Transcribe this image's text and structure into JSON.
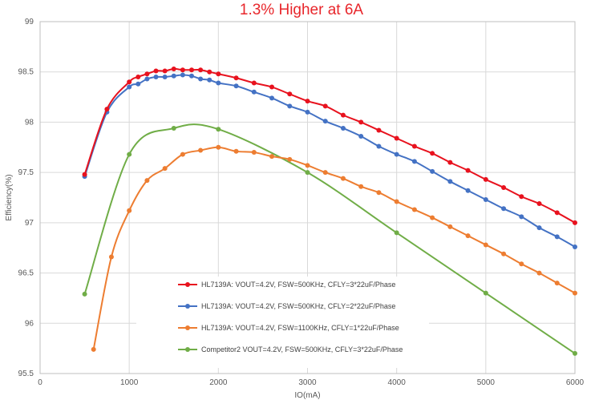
{
  "chart_data": {
    "type": "line",
    "title": "1.3% Higher at 6A",
    "xlabel": "IO(mA)",
    "ylabel": "Efficiency(%)",
    "xlim": [
      0,
      6000
    ],
    "ylim": [
      95.5,
      99
    ],
    "xticks": [
      "0",
      "1000",
      "2000",
      "3000",
      "4000",
      "5000",
      "6000"
    ],
    "yticks": [
      "95.5",
      "96",
      "96.5",
      "97",
      "97.5",
      "98",
      "98.5",
      "99"
    ],
    "grid": true,
    "legend_position": "lower-center",
    "series": [
      {
        "name": "HL7139A: VOUT=4.2V, FSW=500KHz, CFLY=3*22uF/Phase",
        "color": "#e8121e",
        "x": [
          500,
          750,
          1000,
          1100,
          1200,
          1300,
          1400,
          1500,
          1600,
          1700,
          1800,
          1900,
          2000,
          2200,
          2400,
          2600,
          2800,
          3000,
          3200,
          3400,
          3600,
          3800,
          4000,
          4200,
          4400,
          4600,
          4800,
          5000,
          5200,
          5400,
          5600,
          5800,
          6000
        ],
        "y": [
          97.48,
          98.13,
          98.4,
          98.45,
          98.48,
          98.51,
          98.51,
          98.53,
          98.52,
          98.52,
          98.52,
          98.5,
          98.48,
          98.44,
          98.39,
          98.35,
          98.28,
          98.21,
          98.16,
          98.07,
          98.0,
          97.92,
          97.84,
          97.76,
          97.69,
          97.6,
          97.52,
          97.43,
          97.35,
          97.26,
          97.19,
          97.1,
          97.0
        ]
      },
      {
        "name": "HL7139A: VOUT=4.2V, FSW=500KHz, CFLY=2*22uF/Phase",
        "color": "#4472c4",
        "x": [
          500,
          750,
          1000,
          1100,
          1200,
          1300,
          1400,
          1500,
          1600,
          1700,
          1800,
          1900,
          2000,
          2200,
          2400,
          2600,
          2800,
          3000,
          3200,
          3400,
          3600,
          3800,
          4000,
          4200,
          4400,
          4600,
          4800,
          5000,
          5200,
          5400,
          5600,
          5800,
          6000
        ],
        "y": [
          97.46,
          98.1,
          98.35,
          98.38,
          98.43,
          98.45,
          98.45,
          98.46,
          98.47,
          98.46,
          98.43,
          98.42,
          98.39,
          98.36,
          98.3,
          98.24,
          98.16,
          98.1,
          98.01,
          97.94,
          97.86,
          97.76,
          97.68,
          97.61,
          97.51,
          97.41,
          97.32,
          97.23,
          97.14,
          97.06,
          96.95,
          96.86,
          96.76
        ]
      },
      {
        "name": "HL7139A: VOUT=4.2V, FSW=1100KHz, CFLY=1*22uF/Phase",
        "color": "#ed7d31",
        "x": [
          600,
          800,
          1000,
          1200,
          1400,
          1600,
          1800,
          2000,
          2200,
          2400,
          2600,
          2800,
          3000,
          3200,
          3400,
          3600,
          3800,
          4000,
          4200,
          4400,
          4600,
          4800,
          5000,
          5200,
          5400,
          5600,
          5800,
          6000
        ],
        "y": [
          95.74,
          96.66,
          97.12,
          97.42,
          97.54,
          97.68,
          97.72,
          97.75,
          97.71,
          97.7,
          97.66,
          97.63,
          97.57,
          97.5,
          97.44,
          97.36,
          97.3,
          97.21,
          97.13,
          97.05,
          96.96,
          96.87,
          96.78,
          96.69,
          96.59,
          96.5,
          96.4,
          96.3
        ]
      },
      {
        "name": "Competitor2 VOUT=4.2V, FSW=500KHz, CFLY=3*22uF/Phase",
        "color": "#70ad47",
        "x": [
          500,
          1000,
          1500,
          2000,
          3000,
          4000,
          5000,
          6000
        ],
        "y": [
          96.29,
          97.68,
          97.94,
          97.93,
          97.5,
          96.9,
          96.3,
          95.7
        ]
      }
    ]
  }
}
